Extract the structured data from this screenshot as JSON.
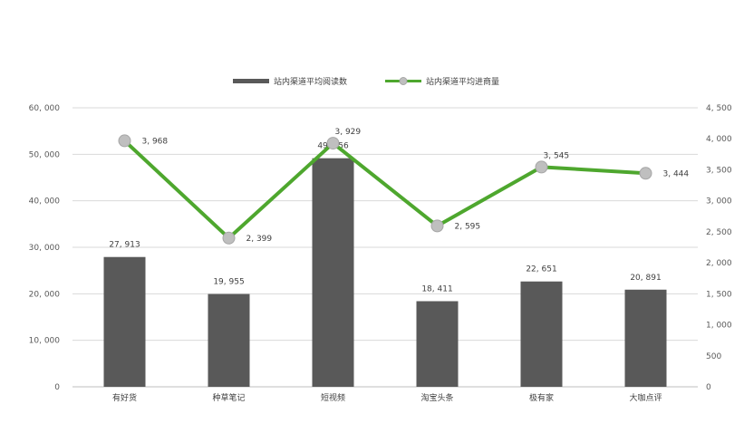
{
  "chart_data": {
    "type": "bar",
    "categories": [
      "有好货",
      "种草笔记",
      "短视频",
      "淘宝头条",
      "极有家",
      "大咖点评"
    ],
    "series": [
      {
        "name": "站内渠道平均阅读数",
        "type": "bar",
        "axis": "left",
        "values": [
          27913,
          19955,
          49156,
          18411,
          22651,
          20891
        ],
        "labels": [
          "27, 913",
          "19, 955",
          "49, 156",
          "18, 411",
          "22, 651",
          "20, 891"
        ],
        "color": "#595959"
      },
      {
        "name": "站内渠道平均进商量",
        "type": "line",
        "axis": "right",
        "values": [
          3968,
          2399,
          3929,
          2595,
          3545,
          3444
        ],
        "labels": [
          "3, 968",
          "2, 399",
          "3, 929",
          "2, 595",
          "3, 545",
          "3, 444"
        ],
        "color": "#4ea72e",
        "marker_color": "#bfbfbf"
      }
    ],
    "y_left": {
      "ylim": [
        0,
        60000
      ],
      "ticks": [
        0,
        10000,
        20000,
        30000,
        40000,
        50000,
        60000
      ],
      "tick_labels": [
        "0",
        "10, 000",
        "20, 000",
        "30, 000",
        "40, 000",
        "50, 000",
        "60, 000"
      ]
    },
    "y_right": {
      "ylim": [
        0,
        4500
      ],
      "ticks": [
        0,
        500,
        1000,
        1500,
        2000,
        2500,
        3000,
        3500,
        4000,
        4500
      ],
      "tick_labels": [
        "0",
        "500",
        "1, 000",
        "1, 500",
        "2, 000",
        "2, 500",
        "3, 000",
        "3, 500",
        "4, 000",
        "4, 500"
      ]
    },
    "grid": true,
    "legend_position": "top-center",
    "gridline_color": "#d9d9d9"
  }
}
